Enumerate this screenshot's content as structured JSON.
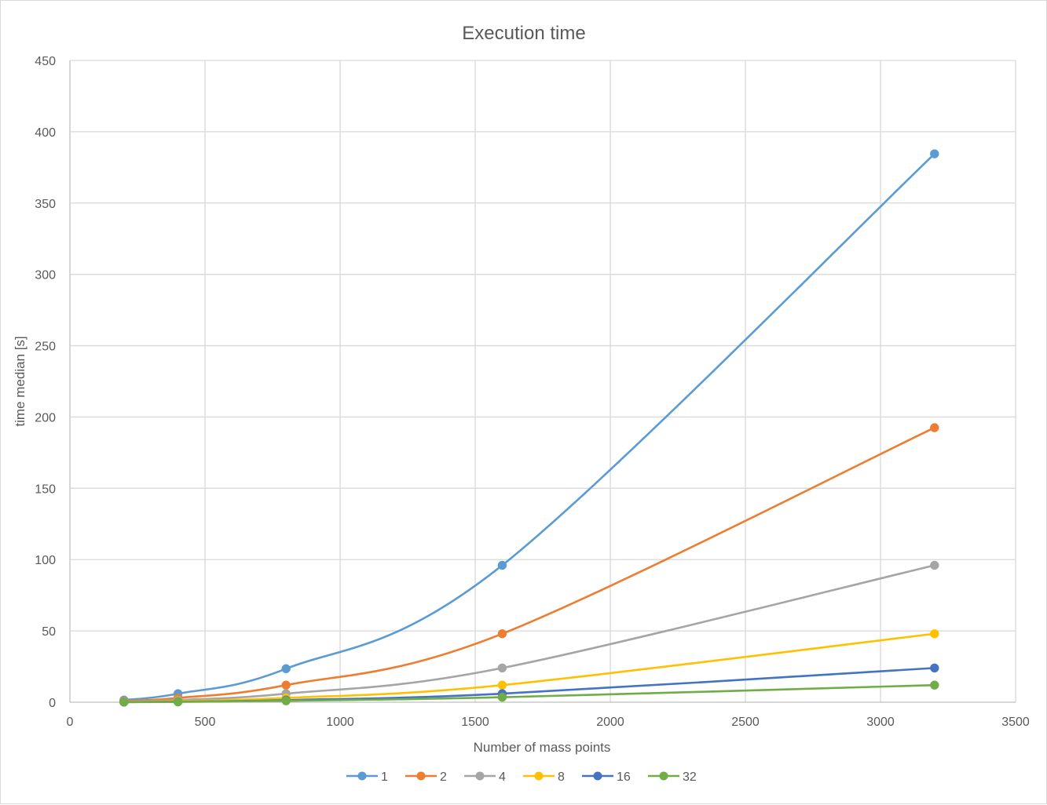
{
  "chart_data": {
    "type": "scatter",
    "title": "Execution time",
    "xlabel": "Number of mass points",
    "ylabel": "time median [s]",
    "xlim": [
      0,
      3500
    ],
    "ylim": [
      0,
      450
    ],
    "xticks": [
      0,
      500,
      1000,
      1500,
      2000,
      2500,
      3000,
      3500
    ],
    "yticks": [
      0,
      50,
      100,
      150,
      200,
      250,
      300,
      350,
      400,
      450
    ],
    "grid": true,
    "smooth_lines": true,
    "markers": true,
    "legend_position": "bottom",
    "x": [
      200,
      400,
      800,
      1600,
      3200
    ],
    "series": [
      {
        "name": "1",
        "color": "#5b9bd5",
        "values": [
          1.5,
          6,
          23.5,
          96,
          384.5
        ]
      },
      {
        "name": "2",
        "color": "#ed7d31",
        "values": [
          0.8,
          3,
          12,
          48,
          192.5
        ]
      },
      {
        "name": "4",
        "color": "#a5a5a5",
        "values": [
          0.4,
          1.5,
          6,
          24,
          96
        ]
      },
      {
        "name": "8",
        "color": "#ffc000",
        "values": [
          0.2,
          0.8,
          3,
          12,
          48
        ]
      },
      {
        "name": "16",
        "color": "#4472c4",
        "values": [
          0.1,
          0.4,
          1.5,
          6,
          24
        ]
      },
      {
        "name": "32",
        "color": "#70ad47",
        "values": [
          0.05,
          0.2,
          1,
          3.5,
          12
        ]
      }
    ]
  }
}
